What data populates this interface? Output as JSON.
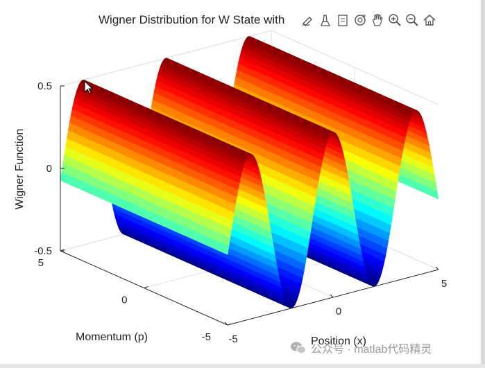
{
  "chart_data": {
    "type": "surface",
    "title": "Wigner Distribution for W State with",
    "xlabel": "Position (x)",
    "ylabel": "Momentum (p)",
    "zlabel": "Wigner Function",
    "xlim": [
      -5,
      5
    ],
    "ylim": [
      -5,
      5
    ],
    "zlim": [
      -0.5,
      0.5
    ],
    "xticks": [
      "-5",
      "0",
      "5"
    ],
    "yticks": [
      "-5",
      "0",
      "5"
    ],
    "zticks": [
      "-0.5",
      "0",
      "0.5"
    ],
    "colormap": "jet",
    "grid": true,
    "surface": {
      "function": "0.5*cos(1.6*x)",
      "peak_x": [
        -3.93,
        0,
        3.93
      ],
      "trough_x": [
        -5,
        -1.96,
        1.96,
        5
      ],
      "z_max": 0.5,
      "z_min": -0.5
    }
  },
  "toolbar": {
    "buttons": [
      {
        "name": "edit-plot-icon"
      },
      {
        "name": "insert-colorbar-icon"
      },
      {
        "name": "insert-legend-icon"
      },
      {
        "name": "rotate-3d-icon"
      },
      {
        "name": "pan-icon"
      },
      {
        "name": "zoom-in-icon"
      },
      {
        "name": "zoom-out-icon"
      },
      {
        "name": "restore-view-icon"
      }
    ]
  },
  "watermark": {
    "text": "公众号 · matlab代码精灵"
  }
}
